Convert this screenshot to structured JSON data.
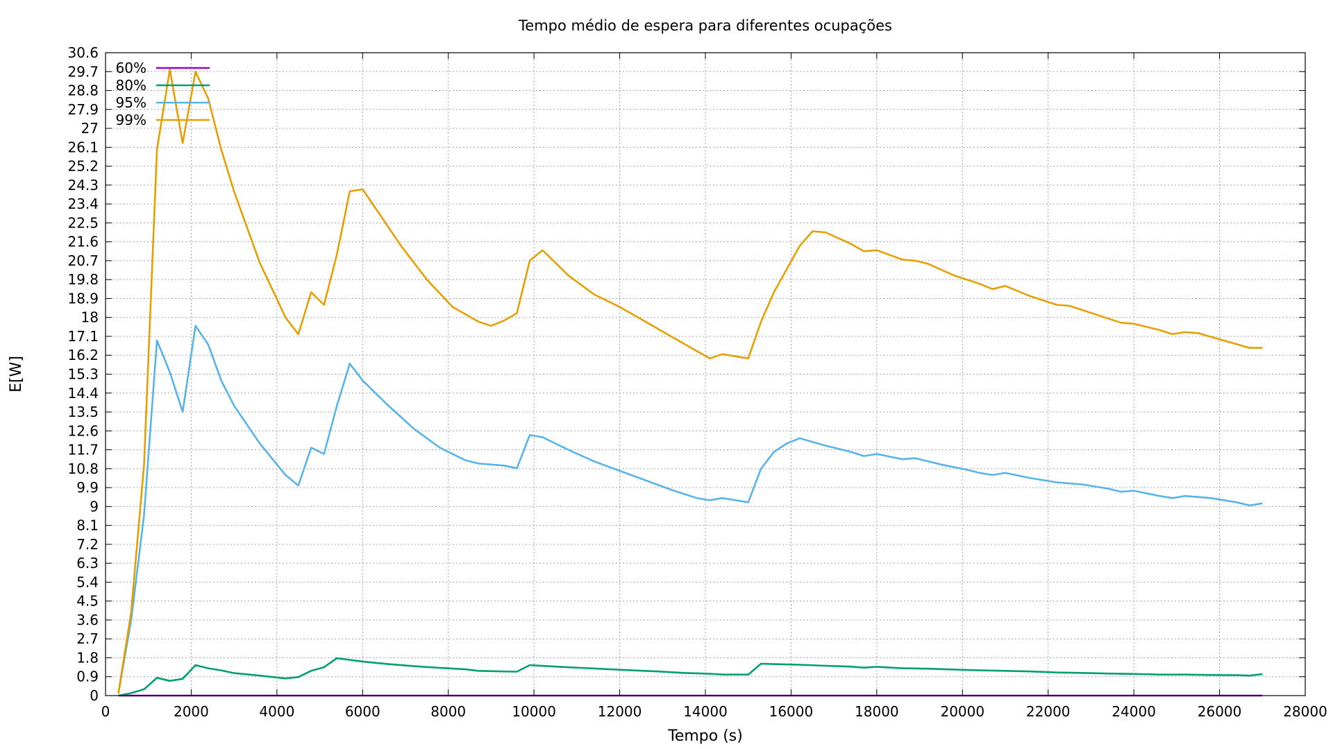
{
  "chart_data": {
    "type": "line",
    "title": "Tempo médio de espera para diferentes ocupações",
    "xlabel": "Tempo (s)",
    "ylabel": "E[W]",
    "xlim": [
      0,
      28000
    ],
    "ylim": [
      0,
      30.6
    ],
    "xticks": [
      0,
      2000,
      4000,
      6000,
      8000,
      10000,
      12000,
      14000,
      16000,
      18000,
      20000,
      22000,
      24000,
      26000,
      28000
    ],
    "yticks": [
      0,
      0.9,
      1.8,
      2.7,
      3.6,
      4.5,
      5.4,
      6.3,
      7.2,
      8.1,
      9,
      9.9,
      10.8,
      11.7,
      12.6,
      13.5,
      14.4,
      15.3,
      16.2,
      17.1,
      18,
      18.9,
      19.8,
      20.7,
      21.6,
      22.5,
      23.4,
      24.3,
      25.2,
      26.1,
      27,
      27.9,
      28.8,
      29.7,
      30.6
    ],
    "ytick_labels": [
      "0",
      "0.9",
      "1.8",
      "2.7",
      "3.6",
      "4.5",
      "5.4",
      "6.3",
      "7.2",
      "8.1",
      "9",
      "9.9",
      "10.8",
      "11.7",
      "12.6",
      "13.5",
      "14.4",
      "15.3",
      "16.2",
      "17.1",
      "18",
      "18.9",
      "19.8",
      "20.7",
      "21.6",
      "22.5",
      "23.4",
      "24.3",
      "25.2",
      "26.1",
      "27",
      "27.9",
      "28.8",
      "29.7",
      "30.6"
    ],
    "grid": true,
    "legend_position": "top-left",
    "series": [
      {
        "name": "60%",
        "color": "#9400d3",
        "points": [
          [
            300,
            0
          ],
          [
            27000,
            0
          ]
        ]
      },
      {
        "name": "80%",
        "color": "#009e73",
        "points": [
          [
            300,
            0
          ],
          [
            600,
            0.12
          ],
          [
            900,
            0.3
          ],
          [
            1200,
            0.85
          ],
          [
            1500,
            0.7
          ],
          [
            1800,
            0.8
          ],
          [
            2100,
            1.45
          ],
          [
            2400,
            1.3
          ],
          [
            2700,
            1.2
          ],
          [
            3000,
            1.07
          ],
          [
            3600,
            0.95
          ],
          [
            4200,
            0.82
          ],
          [
            4500,
            0.88
          ],
          [
            4800,
            1.18
          ],
          [
            5100,
            1.35
          ],
          [
            5400,
            1.78
          ],
          [
            5700,
            1.7
          ],
          [
            6000,
            1.62
          ],
          [
            6600,
            1.5
          ],
          [
            7200,
            1.4
          ],
          [
            7800,
            1.32
          ],
          [
            8400,
            1.25
          ],
          [
            8700,
            1.18
          ],
          [
            9300,
            1.15
          ],
          [
            9600,
            1.14
          ],
          [
            9900,
            1.45
          ],
          [
            10500,
            1.38
          ],
          [
            11100,
            1.32
          ],
          [
            11700,
            1.26
          ],
          [
            12300,
            1.2
          ],
          [
            12900,
            1.15
          ],
          [
            13500,
            1.08
          ],
          [
            14100,
            1.04
          ],
          [
            14400,
            1.0
          ],
          [
            15000,
            1.0
          ],
          [
            15300,
            1.52
          ],
          [
            15600,
            1.5
          ],
          [
            16200,
            1.47
          ],
          [
            16800,
            1.42
          ],
          [
            17400,
            1.38
          ],
          [
            17700,
            1.33
          ],
          [
            18000,
            1.37
          ],
          [
            18600,
            1.3
          ],
          [
            19200,
            1.28
          ],
          [
            19800,
            1.24
          ],
          [
            20400,
            1.2
          ],
          [
            21000,
            1.18
          ],
          [
            21600,
            1.15
          ],
          [
            22200,
            1.1
          ],
          [
            22800,
            1.08
          ],
          [
            23400,
            1.05
          ],
          [
            24000,
            1.03
          ],
          [
            24600,
            1.0
          ],
          [
            25200,
            1.0
          ],
          [
            25800,
            0.98
          ],
          [
            26400,
            0.97
          ],
          [
            26700,
            0.95
          ],
          [
            27000,
            1.02
          ]
        ]
      },
      {
        "name": "95%",
        "color": "#56b4e9",
        "points": [
          [
            300,
            0.1
          ],
          [
            600,
            3.6
          ],
          [
            900,
            8.6
          ],
          [
            1200,
            16.9
          ],
          [
            1500,
            15.4
          ],
          [
            1800,
            13.5
          ],
          [
            2100,
            17.6
          ],
          [
            2400,
            16.7
          ],
          [
            2700,
            15.0
          ],
          [
            3000,
            13.8
          ],
          [
            3600,
            12.0
          ],
          [
            4200,
            10.5
          ],
          [
            4500,
            10.0
          ],
          [
            4800,
            11.8
          ],
          [
            5100,
            11.5
          ],
          [
            5400,
            13.8
          ],
          [
            5700,
            15.8
          ],
          [
            6000,
            15.0
          ],
          [
            6600,
            13.8
          ],
          [
            7200,
            12.7
          ],
          [
            7800,
            11.8
          ],
          [
            8400,
            11.2
          ],
          [
            8700,
            11.05
          ],
          [
            9300,
            10.95
          ],
          [
            9600,
            10.82
          ],
          [
            9900,
            12.4
          ],
          [
            10200,
            12.3
          ],
          [
            10800,
            11.7
          ],
          [
            11400,
            11.15
          ],
          [
            12000,
            10.7
          ],
          [
            12600,
            10.25
          ],
          [
            13200,
            9.8
          ],
          [
            13800,
            9.4
          ],
          [
            14100,
            9.3
          ],
          [
            14400,
            9.4
          ],
          [
            15000,
            9.2
          ],
          [
            15300,
            10.8
          ],
          [
            15600,
            11.6
          ],
          [
            15900,
            12.0
          ],
          [
            16200,
            12.25
          ],
          [
            16800,
            11.9
          ],
          [
            17400,
            11.6
          ],
          [
            17700,
            11.4
          ],
          [
            18000,
            11.5
          ],
          [
            18600,
            11.25
          ],
          [
            18900,
            11.3
          ],
          [
            19500,
            11.0
          ],
          [
            20100,
            10.75
          ],
          [
            20400,
            10.6
          ],
          [
            20700,
            10.5
          ],
          [
            21000,
            10.6
          ],
          [
            21600,
            10.35
          ],
          [
            22200,
            10.15
          ],
          [
            22800,
            10.05
          ],
          [
            23400,
            9.85
          ],
          [
            23700,
            9.7
          ],
          [
            24000,
            9.75
          ],
          [
            24600,
            9.5
          ],
          [
            24900,
            9.4
          ],
          [
            25200,
            9.5
          ],
          [
            25800,
            9.4
          ],
          [
            26400,
            9.2
          ],
          [
            26700,
            9.05
          ],
          [
            27000,
            9.15
          ]
        ]
      },
      {
        "name": "99%",
        "color": "#e69f00",
        "points": [
          [
            300,
            0.1
          ],
          [
            600,
            4.0
          ],
          [
            900,
            11.0
          ],
          [
            1200,
            26.0
          ],
          [
            1500,
            29.8
          ],
          [
            1800,
            26.3
          ],
          [
            2100,
            29.7
          ],
          [
            2400,
            28.4
          ],
          [
            2700,
            26.0
          ],
          [
            3000,
            24.0
          ],
          [
            3600,
            20.6
          ],
          [
            4200,
            18.0
          ],
          [
            4500,
            17.2
          ],
          [
            4800,
            19.2
          ],
          [
            5100,
            18.6
          ],
          [
            5400,
            21.0
          ],
          [
            5700,
            24.0
          ],
          [
            6000,
            24.1
          ],
          [
            6900,
            21.4
          ],
          [
            7500,
            19.8
          ],
          [
            8100,
            18.5
          ],
          [
            8700,
            17.8
          ],
          [
            9000,
            17.6
          ],
          [
            9300,
            17.85
          ],
          [
            9600,
            18.2
          ],
          [
            9900,
            20.7
          ],
          [
            10200,
            21.2
          ],
          [
            10800,
            20.0
          ],
          [
            11400,
            19.1
          ],
          [
            12000,
            18.5
          ],
          [
            12600,
            17.8
          ],
          [
            13200,
            17.1
          ],
          [
            13800,
            16.4
          ],
          [
            14100,
            16.05
          ],
          [
            14400,
            16.25
          ],
          [
            15000,
            16.05
          ],
          [
            15300,
            17.8
          ],
          [
            15600,
            19.2
          ],
          [
            16200,
            21.4
          ],
          [
            16500,
            22.1
          ],
          [
            16800,
            22.05
          ],
          [
            17400,
            21.5
          ],
          [
            17700,
            21.15
          ],
          [
            18000,
            21.2
          ],
          [
            18600,
            20.75
          ],
          [
            18900,
            20.7
          ],
          [
            19200,
            20.55
          ],
          [
            19800,
            20.0
          ],
          [
            20400,
            19.6
          ],
          [
            20700,
            19.35
          ],
          [
            21000,
            19.5
          ],
          [
            21600,
            19.0
          ],
          [
            22200,
            18.6
          ],
          [
            22500,
            18.55
          ],
          [
            23100,
            18.15
          ],
          [
            23700,
            17.75
          ],
          [
            24000,
            17.7
          ],
          [
            24600,
            17.4
          ],
          [
            24900,
            17.2
          ],
          [
            25200,
            17.3
          ],
          [
            25500,
            17.25
          ],
          [
            26100,
            16.9
          ],
          [
            26700,
            16.55
          ],
          [
            27000,
            16.55
          ]
        ]
      }
    ]
  }
}
